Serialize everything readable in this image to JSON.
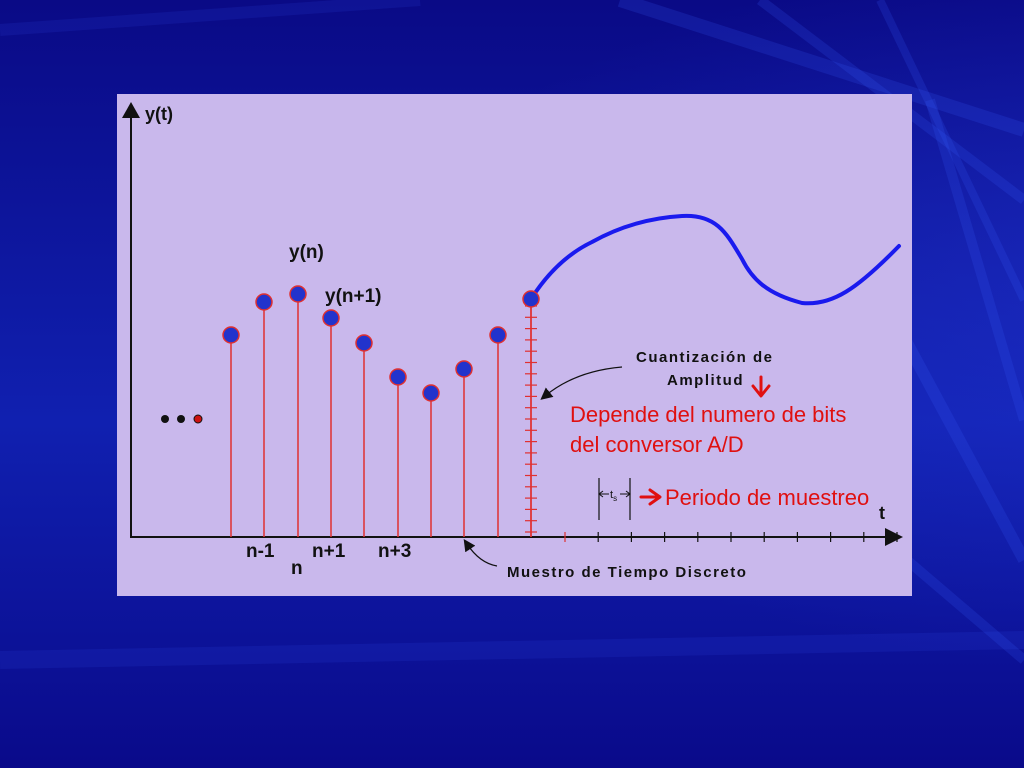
{
  "diagram": {
    "y_axis_label": "y(t)",
    "t_axis_label": "t",
    "sample_labels": {
      "yn": "y(n)",
      "yn1": "y(n+1)",
      "n_minus_1": "n-1",
      "n": "n",
      "n_plus_1": "n+1",
      "n_plus_3": "n+3"
    },
    "annotations": {
      "quantization_line1": "Cuantización de",
      "quantization_line2": "Amplitud",
      "bits_line1": "Depende del numero de bits",
      "bits_line2": "del conversor A/D",
      "ts_base": "t",
      "ts_sub": "s",
      "sampling_period": "Periodo de muestreo",
      "discrete_time": "Muestro de Tiempo Discreto"
    },
    "colors": {
      "panel": "#c9b8ec",
      "stem": "#e03030",
      "dot": "#2233cc",
      "curve": "#1a1aee",
      "note": "#e01010"
    }
  }
}
